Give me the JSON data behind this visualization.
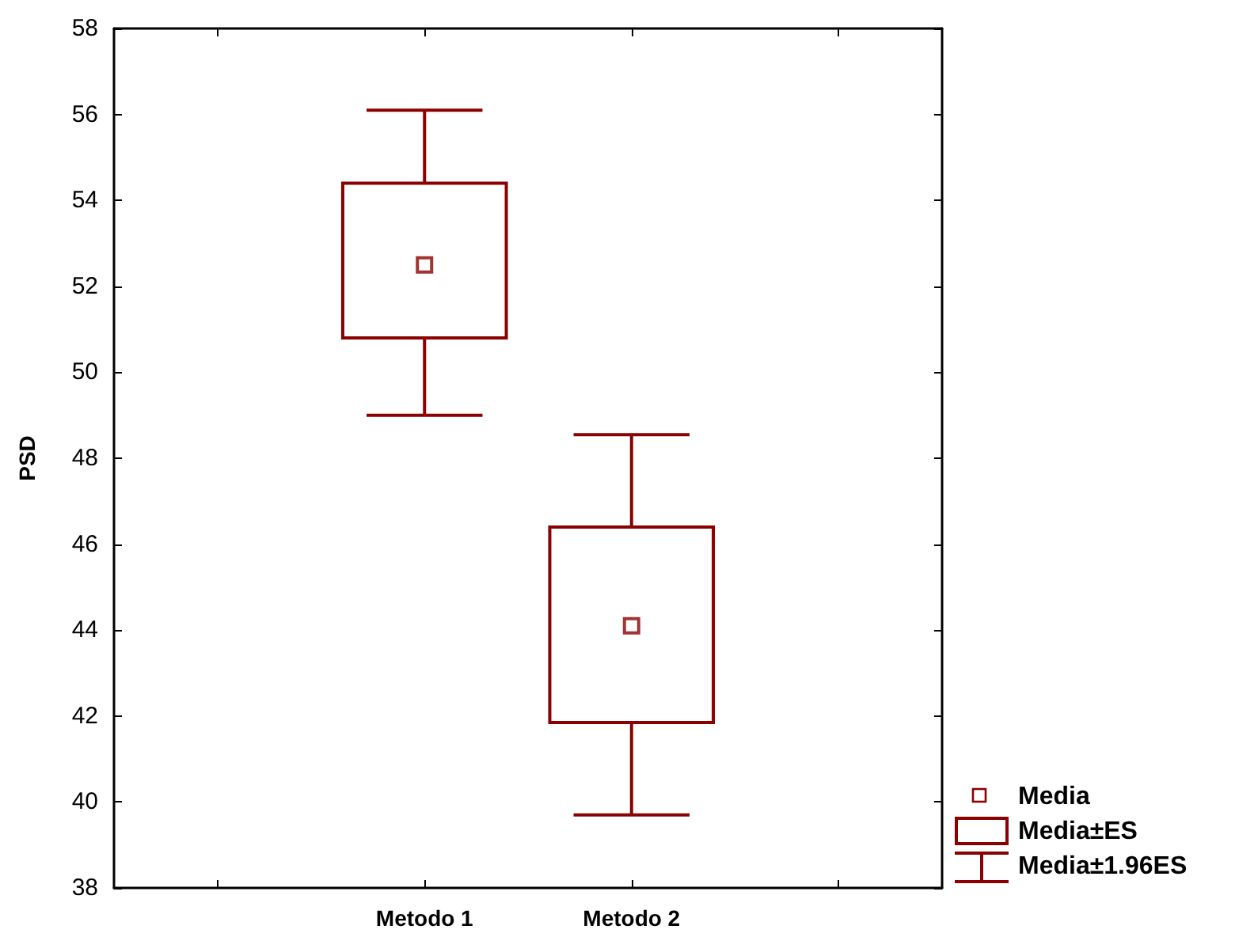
{
  "chart_data": {
    "type": "box",
    "ylabel": "PSD",
    "categories": [
      null,
      "Metodo 1",
      "Metodo 2",
      null
    ],
    "ylim": [
      38,
      58
    ],
    "yticks": [
      38,
      40,
      42,
      44,
      46,
      48,
      50,
      52,
      54,
      56,
      58
    ],
    "grid": false,
    "marker": "square",
    "annotations": [
      "Media",
      "Media±ES",
      "Media±1.96ES"
    ],
    "series": [
      {
        "color": "#8b0000",
        "boxes": [
          null,
          {
            "low": 49.0,
            "q1": 50.8,
            "q3": 54.4,
            "high": 56.1,
            "mean": 52.5
          },
          {
            "low": 39.7,
            "q1": 41.85,
            "q3": 46.4,
            "high": 48.55,
            "mean": 44.1
          },
          null
        ]
      }
    ]
  }
}
